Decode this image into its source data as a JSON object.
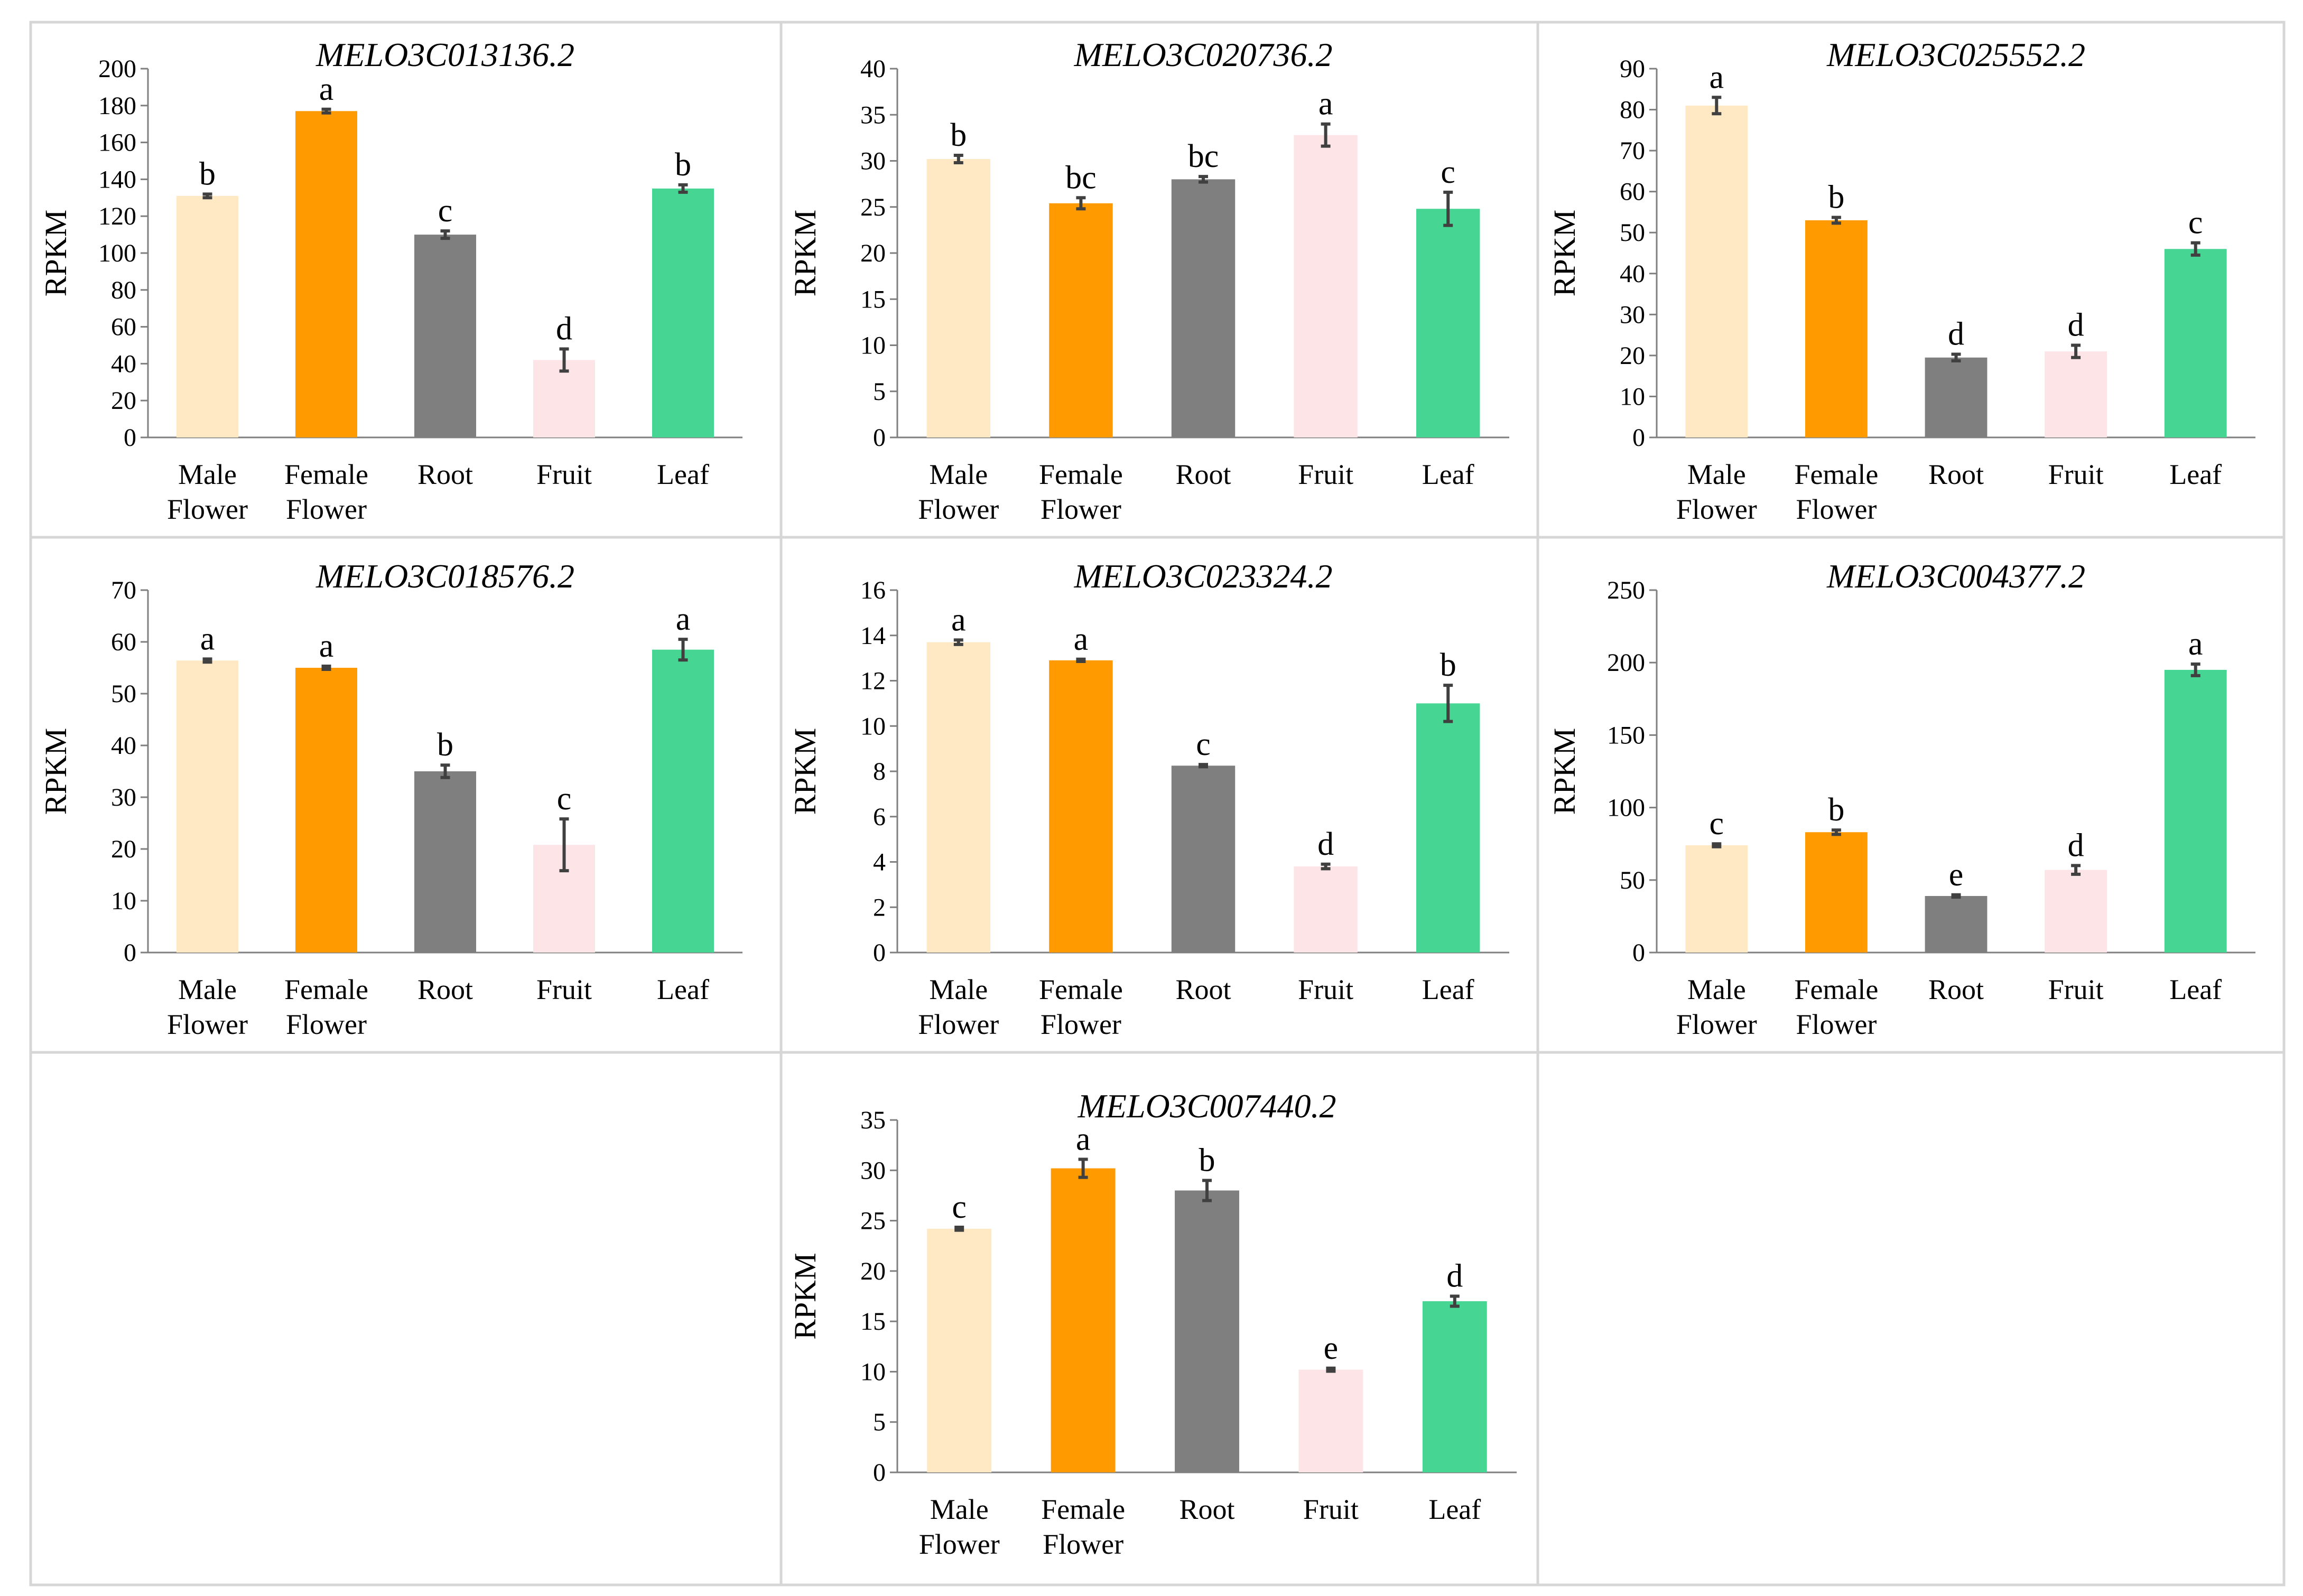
{
  "chart_data": [
    {
      "type": "bar",
      "title": "MELO3C013136.2",
      "ylabel": "RPKM",
      "xlabel": "",
      "ylim": [
        0,
        200
      ],
      "yticks": [
        0,
        20,
        40,
        60,
        80,
        100,
        120,
        140,
        160,
        180,
        200
      ],
      "categories": [
        [
          "Male",
          "Flower"
        ],
        [
          "Female",
          "Flower"
        ],
        [
          "Root"
        ],
        [
          "Fruit"
        ],
        [
          "Leaf"
        ]
      ],
      "values": [
        131,
        177,
        110,
        42,
        135
      ],
      "errors": [
        1,
        1,
        2,
        6,
        2
      ],
      "significance": [
        "b",
        "a",
        "c",
        "d",
        "b"
      ]
    },
    {
      "type": "bar",
      "title": "MELO3C020736.2",
      "ylabel": "RPKM",
      "xlabel": "",
      "ylim": [
        0,
        40
      ],
      "yticks": [
        0,
        5,
        10,
        15,
        20,
        25,
        30,
        35,
        40
      ],
      "categories": [
        [
          "Male",
          "Flower"
        ],
        [
          "Female",
          "Flower"
        ],
        [
          "Root"
        ],
        [
          "Fruit"
        ],
        [
          "Leaf"
        ]
      ],
      "values": [
        30.2,
        25.4,
        28.0,
        32.8,
        24.8
      ],
      "errors": [
        0.4,
        0.6,
        0.3,
        1.2,
        1.8
      ],
      "significance": [
        "b",
        "bc",
        "bc",
        "a",
        "c"
      ]
    },
    {
      "type": "bar",
      "title": "MELO3C025552.2",
      "ylabel": "RPKM",
      "xlabel": "",
      "ylim": [
        0,
        90
      ],
      "yticks": [
        0,
        10,
        20,
        30,
        40,
        50,
        60,
        70,
        80,
        90
      ],
      "categories": [
        [
          "Male",
          "Flower"
        ],
        [
          "Female",
          "Flower"
        ],
        [
          "Root"
        ],
        [
          "Fruit"
        ],
        [
          "Leaf"
        ]
      ],
      "values": [
        81,
        53,
        19.5,
        21,
        46
      ],
      "errors": [
        2,
        0.7,
        0.8,
        1.5,
        1.5
      ],
      "significance": [
        "a",
        "b",
        "d",
        "d",
        "c"
      ]
    },
    {
      "type": "bar",
      "title": "MELO3C018576.2",
      "ylabel": "RPKM",
      "xlabel": "",
      "ylim": [
        0,
        70
      ],
      "yticks": [
        0,
        10,
        20,
        30,
        40,
        50,
        60,
        70
      ],
      "categories": [
        [
          "Male",
          "Flower"
        ],
        [
          "Female",
          "Flower"
        ],
        [
          "Root"
        ],
        [
          "Fruit"
        ],
        [
          "Leaf"
        ]
      ],
      "values": [
        56.4,
        55.0,
        35.0,
        20.8,
        58.5
      ],
      "errors": [
        0.3,
        0.3,
        1.2,
        5.0,
        2.0
      ],
      "significance": [
        "a",
        "a",
        "b",
        "c",
        "a"
      ]
    },
    {
      "type": "bar",
      "title": "MELO3C023324.2",
      "ylabel": "RPKM",
      "xlabel": "",
      "ylim": [
        0,
        16
      ],
      "yticks": [
        0,
        2,
        4,
        6,
        8,
        10,
        12,
        14,
        16
      ],
      "categories": [
        [
          "Male",
          "Flower"
        ],
        [
          "Female",
          "Flower"
        ],
        [
          "Root"
        ],
        [
          "Fruit"
        ],
        [
          "Leaf"
        ]
      ],
      "values": [
        13.7,
        12.9,
        8.25,
        3.8,
        11.0
      ],
      "errors": [
        0.1,
        0.05,
        0.05,
        0.1,
        0.8
      ],
      "significance": [
        "a",
        "a",
        "c",
        "d",
        "b"
      ]
    },
    {
      "type": "bar",
      "title": "MELO3C004377.2",
      "ylabel": "RPKM",
      "xlabel": "",
      "ylim": [
        0,
        250
      ],
      "yticks": [
        0,
        50,
        100,
        150,
        200,
        250
      ],
      "categories": [
        [
          "Male",
          "Flower"
        ],
        [
          "Female",
          "Flower"
        ],
        [
          "Root"
        ],
        [
          "Fruit"
        ],
        [
          "Leaf"
        ]
      ],
      "values": [
        74,
        83,
        39,
        57,
        195
      ],
      "errors": [
        1,
        1.5,
        0.8,
        3,
        4
      ],
      "significance": [
        "c",
        "b",
        "e",
        "d",
        "a"
      ]
    },
    {
      "type": "bar",
      "title": "MELO3C007440.2",
      "ylabel": "RPKM",
      "xlabel": "",
      "ylim": [
        0,
        35
      ],
      "yticks": [
        0,
        5,
        10,
        15,
        20,
        25,
        30,
        35
      ],
      "categories": [
        [
          "Male",
          "Flower"
        ],
        [
          "Female",
          "Flower"
        ],
        [
          "Root"
        ],
        [
          "Fruit"
        ],
        [
          "Leaf"
        ]
      ],
      "values": [
        24.2,
        30.2,
        28.0,
        10.2,
        17.0
      ],
      "errors": [
        0.15,
        0.9,
        1.0,
        0.15,
        0.5
      ],
      "significance": [
        "c",
        "a",
        "b",
        "e",
        "d"
      ]
    }
  ],
  "colors": {
    "bars": [
      "#FFE9C5",
      "#FF9A00",
      "#7F7F7F",
      "#FCE4E7",
      "#47D594"
    ],
    "axis": "#7F7F7F",
    "error_bar": "#404040",
    "grid_border": "#D6D6D6"
  }
}
